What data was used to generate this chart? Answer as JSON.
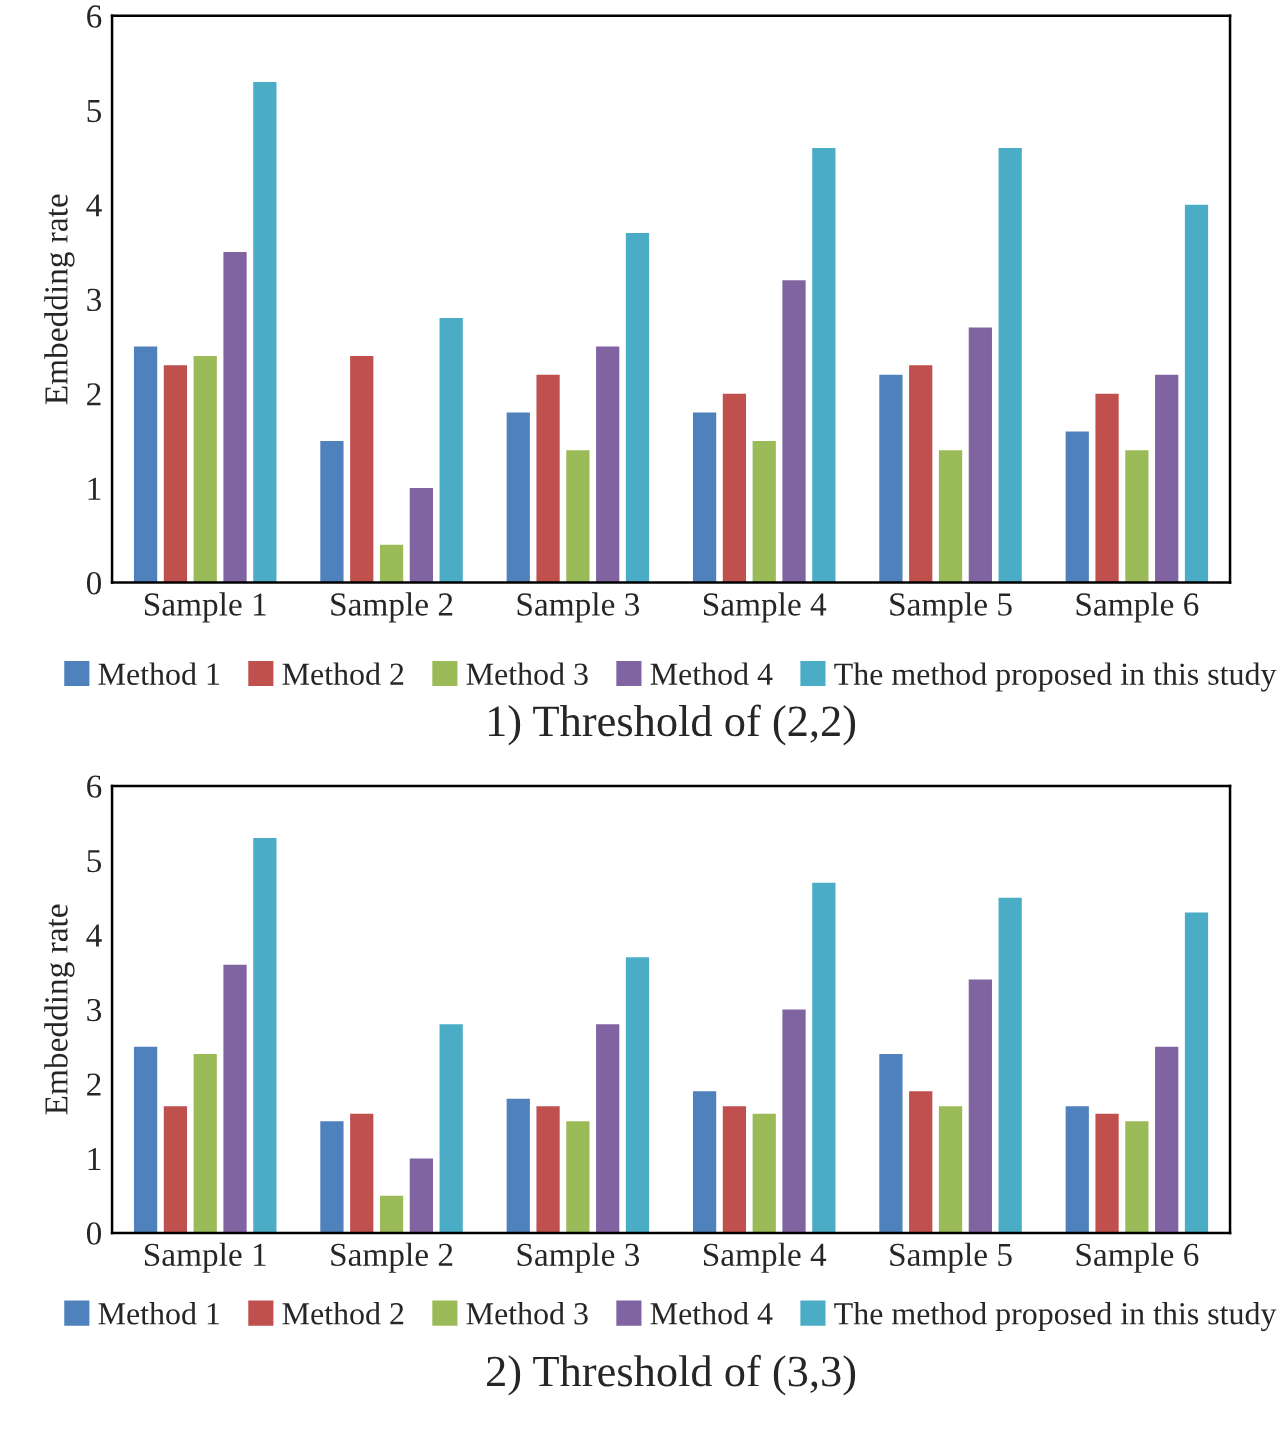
{
  "chart_data": [
    {
      "type": "bar",
      "title": "1) Threshold of (2,2)",
      "ylabel": "Embedding rate",
      "categories": [
        "Sample 1",
        "Sample 2",
        "Sample 3",
        "Sample 4",
        "Sample 5",
        "Sample 6"
      ],
      "ylim": [
        0,
        6
      ],
      "yticks": [
        0,
        1,
        2,
        3,
        4,
        5,
        6
      ],
      "grid": false,
      "legend": "bottom",
      "series": [
        {
          "name": "Method 1",
          "color": "#4f81bd",
          "values": [
            2.5,
            1.5,
            1.8,
            1.8,
            2.2,
            1.6
          ]
        },
        {
          "name": "Method 2",
          "color": "#c0504d",
          "values": [
            2.3,
            2.4,
            2.2,
            2.0,
            2.3,
            2.0
          ]
        },
        {
          "name": "Method 3",
          "color": "#9bbb59",
          "values": [
            2.4,
            0.4,
            1.4,
            1.5,
            1.4,
            1.4
          ]
        },
        {
          "name": "Method 4",
          "color": "#8064a2",
          "values": [
            3.5,
            1.0,
            2.5,
            3.2,
            2.7,
            2.2
          ]
        },
        {
          "name": "The method proposed in this study",
          "color": "#4bacc6",
          "values": [
            5.3,
            2.8,
            3.7,
            4.6,
            4.6,
            4.0
          ]
        }
      ]
    },
    {
      "type": "bar",
      "title": "2) Threshold of (3,3)",
      "ylabel": "Embedding rate",
      "categories": [
        "Sample 1",
        "Sample 2",
        "Sample 3",
        "Sample 4",
        "Sample 5",
        "Sample 6"
      ],
      "ylim": [
        0,
        6
      ],
      "yticks": [
        0,
        1,
        2,
        3,
        4,
        5,
        6
      ],
      "grid": false,
      "legend": "bottom",
      "series": [
        {
          "name": "Method 1",
          "color": "#4f81bd",
          "values": [
            2.5,
            1.5,
            1.8,
            1.9,
            2.4,
            1.7
          ]
        },
        {
          "name": "Method 2",
          "color": "#c0504d",
          "values": [
            1.7,
            1.6,
            1.7,
            1.7,
            1.9,
            1.6
          ]
        },
        {
          "name": "Method 3",
          "color": "#9bbb59",
          "values": [
            2.4,
            0.5,
            1.5,
            1.6,
            1.7,
            1.5
          ]
        },
        {
          "name": "Method 4",
          "color": "#8064a2",
          "values": [
            3.6,
            1.0,
            2.8,
            3.0,
            3.4,
            2.5
          ]
        },
        {
          "name": "The method proposed in this study",
          "color": "#4bacc6",
          "values": [
            5.3,
            2.8,
            3.7,
            4.7,
            4.5,
            4.3
          ]
        }
      ]
    }
  ]
}
